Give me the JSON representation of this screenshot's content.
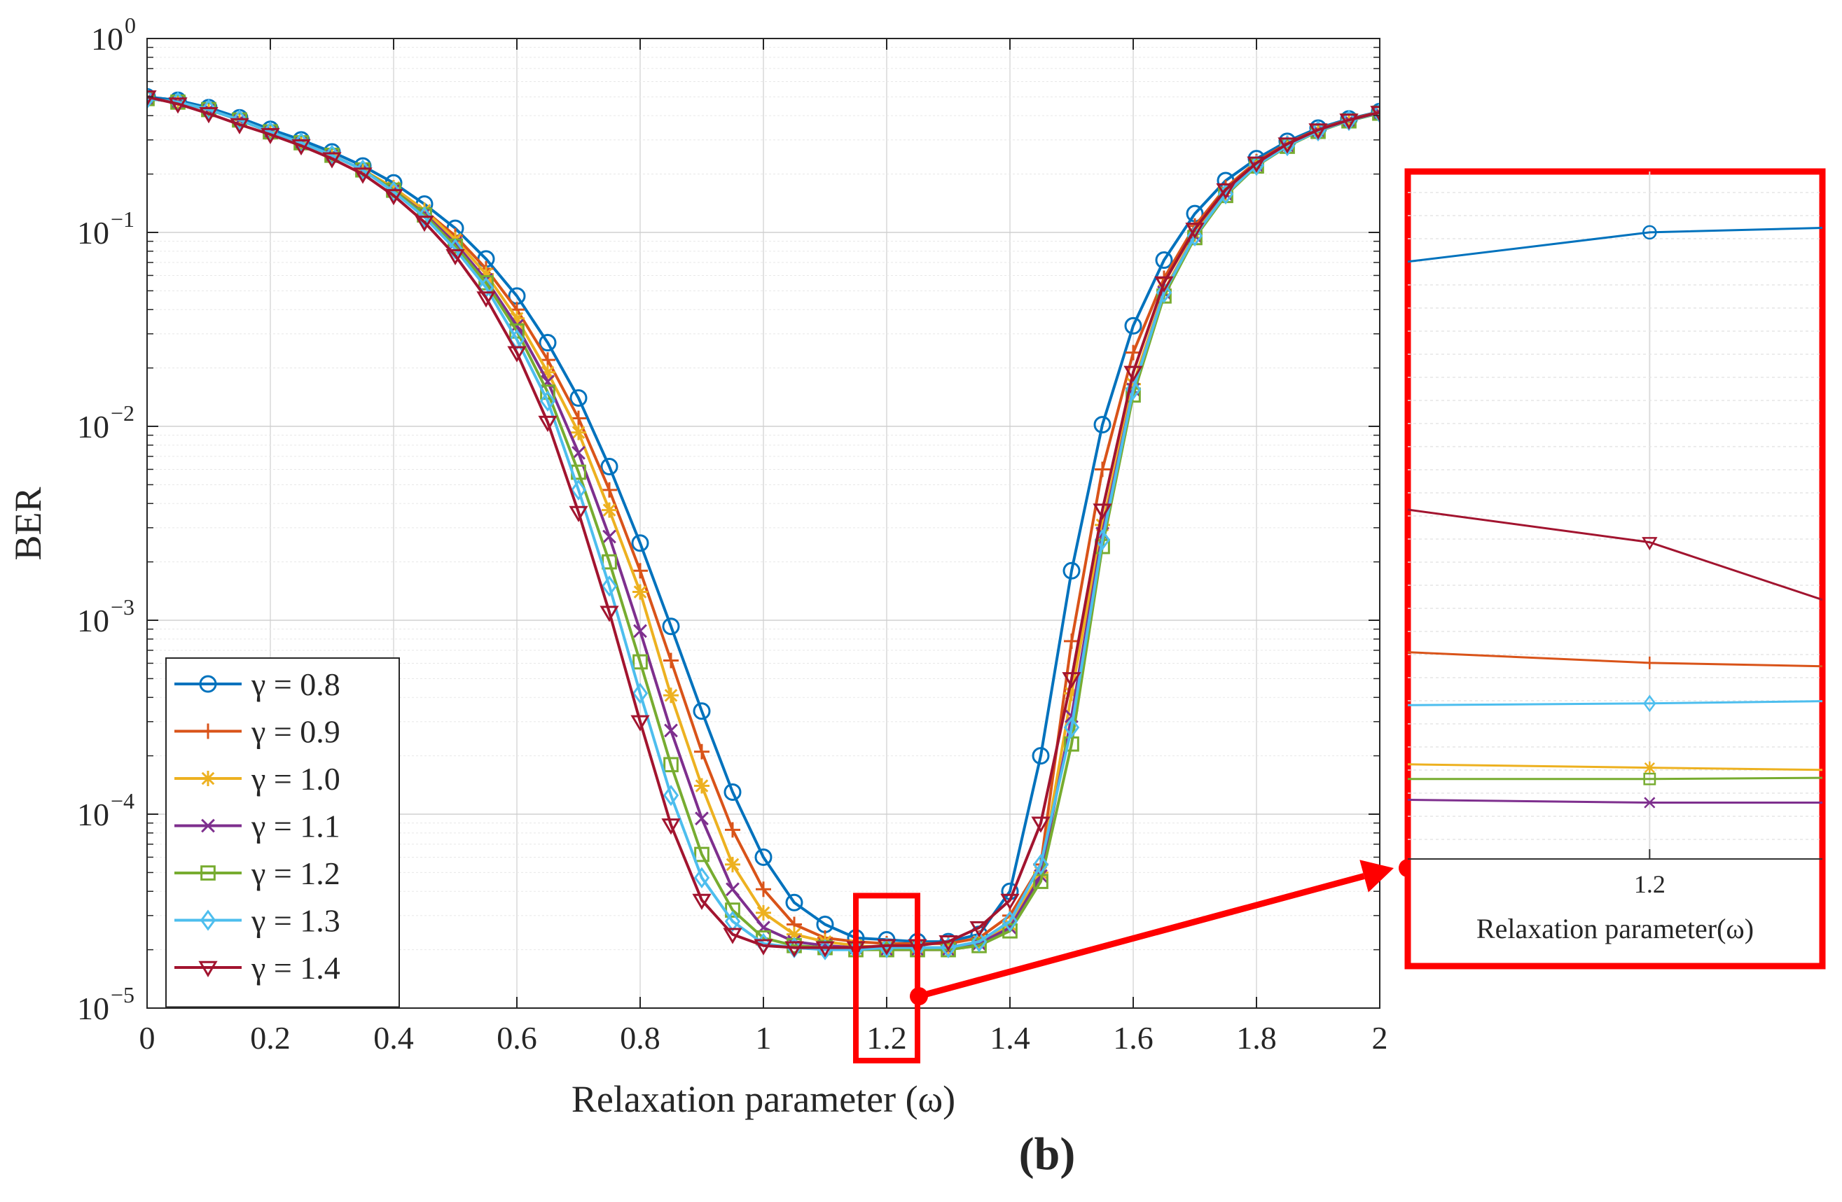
{
  "chart_data": {
    "type": "line",
    "title": "",
    "xlabel": "Relaxation parameter (ω)",
    "ylabel": "BER",
    "xlim": [
      0,
      2
    ],
    "ylim": [
      1e-05,
      1
    ],
    "yscale": "log",
    "grid": true,
    "x_ticks": [
      "0",
      "0.2",
      "0.4",
      "0.6",
      "0.8",
      "1",
      "1.2",
      "1.4",
      "1.6",
      "1.8",
      "2"
    ],
    "y_ticks": [
      {
        "base": "10",
        "exp": "0"
      },
      {
        "base": "10",
        "exp": "−1"
      },
      {
        "base": "10",
        "exp": "−2"
      },
      {
        "base": "10",
        "exp": "−3"
      },
      {
        "base": "10",
        "exp": "−4"
      },
      {
        "base": "10",
        "exp": "−5"
      }
    ],
    "legend_position": "lower-left",
    "panel_label": "(b)",
    "x": [
      0,
      0.05,
      0.1,
      0.15,
      0.2,
      0.25,
      0.3,
      0.35,
      0.4,
      0.45,
      0.5,
      0.55,
      0.6,
      0.65,
      0.7,
      0.75,
      0.8,
      0.85,
      0.9,
      0.95,
      1.0,
      1.05,
      1.1,
      1.15,
      1.2,
      1.25,
      1.3,
      1.35,
      1.4,
      1.45,
      1.5,
      1.55,
      1.6,
      1.65,
      1.7,
      1.75,
      1.8,
      1.85,
      1.9,
      1.95,
      2.0
    ],
    "series": [
      {
        "name": "γ = 0.8",
        "gamma": "0.8",
        "color": "#0072BD",
        "marker": "circle",
        "values": [
          0.5,
          0.48,
          0.44,
          0.39,
          0.34,
          0.3,
          0.26,
          0.22,
          0.18,
          0.14,
          0.105,
          0.073,
          0.047,
          0.027,
          0.014,
          0.0062,
          0.0025,
          0.00093,
          0.00034,
          0.00013,
          6e-05,
          3.5e-05,
          2.7e-05,
          2.3e-05,
          2.25e-05,
          2.2e-05,
          2.2e-05,
          2.4e-05,
          4e-05,
          0.0002,
          0.0018,
          0.0102,
          0.033,
          0.072,
          0.125,
          0.185,
          0.24,
          0.295,
          0.345,
          0.385,
          0.42
        ]
      },
      {
        "name": "γ = 0.9",
        "gamma": "0.9",
        "color": "#D95319",
        "marker": "plus",
        "values": [
          0.49,
          0.47,
          0.43,
          0.38,
          0.33,
          0.29,
          0.25,
          0.21,
          0.17,
          0.13,
          0.096,
          0.065,
          0.04,
          0.022,
          0.011,
          0.0047,
          0.0018,
          0.00062,
          0.00021,
          8.3e-05,
          4.1e-05,
          2.7e-05,
          2.3e-05,
          2.2e-05,
          2.15e-05,
          2.15e-05,
          2.15e-05,
          2.3e-05,
          3e-05,
          5.5e-05,
          0.00078,
          0.006,
          0.024,
          0.058,
          0.108,
          0.17,
          0.232,
          0.288,
          0.34,
          0.382,
          0.418
        ]
      },
      {
        "name": "γ = 1.0",
        "gamma": "1.0",
        "color": "#EDB120",
        "marker": "asterisk",
        "values": [
          0.49,
          0.47,
          0.43,
          0.38,
          0.33,
          0.29,
          0.25,
          0.21,
          0.17,
          0.13,
          0.092,
          0.061,
          0.036,
          0.019,
          0.0093,
          0.0037,
          0.0014,
          0.00041,
          0.00014,
          5.5e-05,
          3.1e-05,
          2.4e-05,
          2.2e-05,
          2.1e-05,
          2.05e-05,
          2.05e-05,
          2.05e-05,
          2.2e-05,
          2.7e-05,
          5e-05,
          0.00042,
          0.0031,
          0.0165,
          0.05,
          0.098,
          0.16,
          0.225,
          0.282,
          0.336,
          0.38,
          0.415
        ]
      },
      {
        "name": "γ = 1.1",
        "gamma": "1.1",
        "color": "#7E2F8E",
        "marker": "cross",
        "values": [
          0.49,
          0.47,
          0.43,
          0.38,
          0.33,
          0.29,
          0.25,
          0.21,
          0.165,
          0.125,
          0.088,
          0.057,
          0.033,
          0.017,
          0.0073,
          0.0027,
          0.00088,
          0.00027,
          9.5e-05,
          4.1e-05,
          2.6e-05,
          2.2e-05,
          2.1e-05,
          2.05e-05,
          2e-05,
          2e-05,
          2e-05,
          2.15e-05,
          2.6e-05,
          4.8e-05,
          0.00032,
          0.0028,
          0.0155,
          0.049,
          0.096,
          0.158,
          0.222,
          0.28,
          0.334,
          0.378,
          0.414
        ]
      },
      {
        "name": "γ = 1.2",
        "gamma": "1.2",
        "color": "#77AC30",
        "marker": "square",
        "values": [
          0.49,
          0.47,
          0.43,
          0.38,
          0.33,
          0.29,
          0.25,
          0.21,
          0.165,
          0.123,
          0.085,
          0.055,
          0.031,
          0.015,
          0.0058,
          0.002,
          0.00061,
          0.00018,
          6.2e-05,
          3.2e-05,
          2.3e-05,
          2.1e-05,
          2.05e-05,
          2e-05,
          2e-05,
          2e-05,
          2e-05,
          2.1e-05,
          2.5e-05,
          4.5e-05,
          0.00023,
          0.0024,
          0.0145,
          0.047,
          0.094,
          0.155,
          0.22,
          0.278,
          0.332,
          0.376,
          0.412
        ]
      },
      {
        "name": "γ = 1.3",
        "gamma": "1.3",
        "color": "#4DBEEE",
        "marker": "diamond",
        "values": [
          0.49,
          0.47,
          0.43,
          0.38,
          0.33,
          0.29,
          0.25,
          0.21,
          0.162,
          0.12,
          0.082,
          0.052,
          0.028,
          0.0135,
          0.0047,
          0.0015,
          0.00042,
          0.000125,
          4.7e-05,
          2.8e-05,
          2.15e-05,
          2.05e-05,
          2e-05,
          2e-05,
          2.05e-05,
          2.05e-05,
          2.05e-05,
          2.2e-05,
          2.8e-05,
          5.5e-05,
          0.00028,
          0.0026,
          0.0155,
          0.049,
          0.096,
          0.158,
          0.222,
          0.28,
          0.334,
          0.378,
          0.414
        ]
      },
      {
        "name": "γ = 1.4",
        "gamma": "1.4",
        "color": "#A2142F",
        "marker": "triangle-down",
        "values": [
          0.5,
          0.46,
          0.41,
          0.36,
          0.32,
          0.28,
          0.24,
          0.2,
          0.155,
          0.113,
          0.076,
          0.046,
          0.024,
          0.0105,
          0.0036,
          0.0011,
          0.0003,
          8.8e-05,
          3.6e-05,
          2.4e-05,
          2.1e-05,
          2.05e-05,
          2.05e-05,
          2.05e-05,
          2.1e-05,
          2.1e-05,
          2.2e-05,
          2.6e-05,
          3.6e-05,
          9e-05,
          0.0005,
          0.0037,
          0.019,
          0.055,
          0.104,
          0.166,
          0.228,
          0.286,
          0.338,
          0.38,
          0.416
        ]
      }
    ],
    "highlight": {
      "x_range": [
        1.15,
        1.25
      ],
      "y_range": [
        1.1e-05,
        3.8e-05
      ]
    },
    "inset": {
      "xlabel": "Relaxation parameter(ω)",
      "tick_label": "1.2",
      "x_center": 1.2,
      "x_range": [
        1.13,
        1.25
      ],
      "series_levels": [
        {
          "name": "γ = 0.8",
          "values": [
            0.16,
            0.108,
            0.1
          ]
        },
        {
          "name": "γ = 1.4",
          "values": [
            0.6,
            0.658,
            0.76
          ]
        },
        {
          "name": "γ = 0.9",
          "values": [
            0.853,
            0.872,
            0.878
          ]
        },
        {
          "name": "γ = 1.3",
          "values": [
            0.947,
            0.944,
            0.94
          ]
        },
        {
          "name": "γ = 1.0",
          "values": [
            1.052,
            1.058,
            1.062
          ]
        },
        {
          "name": "γ = 1.2",
          "values": [
            1.078,
            1.078,
            1.076
          ]
        },
        {
          "name": "γ = 1.1",
          "values": [
            1.115,
            1.12,
            1.12
          ]
        }
      ]
    }
  }
}
